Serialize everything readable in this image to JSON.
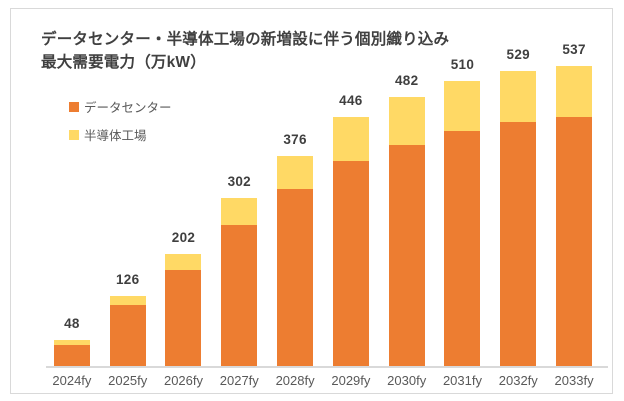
{
  "chart_data": {
    "type": "bar",
    "stacked": true,
    "title_line1": "データセンター・半導体工場の新増設に伴う個別織り込み",
    "title_line2": "最大需要電力（万kW）",
    "categories": [
      "2024fy",
      "2025fy",
      "2026fy",
      "2027fy",
      "2028fy",
      "2029fy",
      "2030fy",
      "2031fy",
      "2032fy",
      "2033fy"
    ],
    "series": [
      {
        "key": "datacenter",
        "name": "データセンター",
        "color": "#ED7D31",
        "values": [
          40,
          110,
          174,
          254,
          318,
          368,
          396,
          421,
          438,
          447
        ]
      },
      {
        "key": "semiconductor-factory",
        "name": "半導体工場",
        "color": "#FFD965",
        "values": [
          8,
          16,
          28,
          48,
          58,
          78,
          86,
          89,
          91,
          90
        ]
      }
    ],
    "totals": [
      48,
      126,
      202,
      302,
      376,
      446,
      482,
      510,
      529,
      537
    ],
    "ylim": [
      0,
      560
    ],
    "grid": false,
    "legend_position": "top-left",
    "colors": {
      "title_text": "#404040",
      "value_label_text": "#3F3F3F",
      "axis_label_text": "#595959",
      "axis_line": "#D9D9D9",
      "frame_border": "#D9D9D9",
      "background": "#FFFFFF"
    }
  }
}
